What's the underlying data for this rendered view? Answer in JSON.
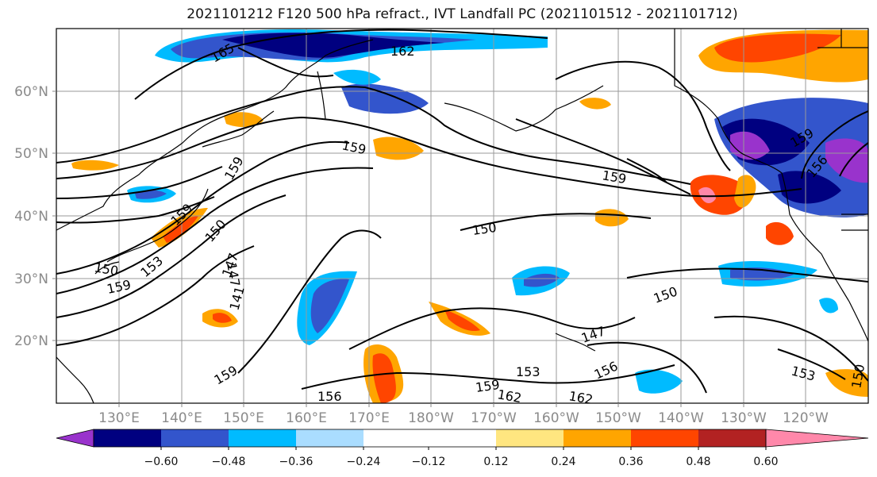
{
  "title": "2021101212 F120 500 hPa refract., IVT Landfall PC (2021101512 - 2021101712)",
  "map": {
    "lat_ticks": [
      "60°N",
      "50°N",
      "40°N",
      "30°N",
      "20°N"
    ],
    "lon_ticks": [
      "130°E",
      "140°E",
      "150°E",
      "160°E",
      "170°E",
      "180°W",
      "170°W",
      "160°W",
      "150°W",
      "140°W",
      "130°W",
      "120°W"
    ],
    "contour_labels": [
      "165",
      "162",
      "159",
      "159",
      "159",
      "150",
      "150",
      "150",
      "150",
      "153",
      "147",
      "147",
      "159",
      "159",
      "156",
      "162",
      "159",
      "162",
      "153",
      "153",
      "156",
      "150",
      "159",
      "156",
      "147",
      "141",
      "159"
    ]
  },
  "colorbar": {
    "tick_labels": [
      "−0.60",
      "−0.48",
      "−0.36",
      "−0.24",
      "−0.12",
      "0.12",
      "0.24",
      "0.36",
      "0.48",
      "0.60"
    ],
    "colors": [
      "#9933cc",
      "#000080",
      "#3355cc",
      "#00bbff",
      "#aaddff",
      "#ffffff",
      "#ffe680",
      "#ffa500",
      "#ff4500",
      "#b22222",
      "#ff88aa"
    ]
  }
}
